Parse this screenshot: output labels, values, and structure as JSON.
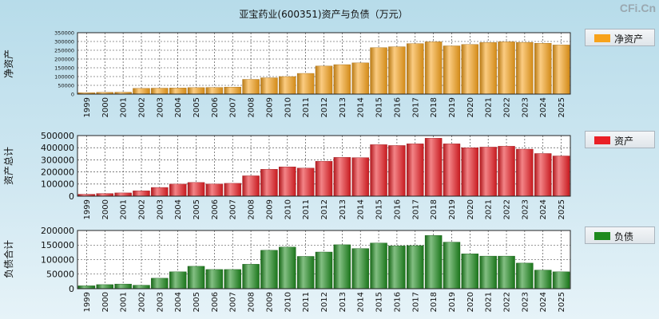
{
  "watermark": "CFi.Cn",
  "chart_data": {
    "title": "亚宝药业(600351)资产与负债（万元）",
    "categories": [
      "1999",
      "2000",
      "2001",
      "2002",
      "2003",
      "2004",
      "2005",
      "2006",
      "2007",
      "2008",
      "2009",
      "2010",
      "2011",
      "2012",
      "2013",
      "2014",
      "2015",
      "2016",
      "2017",
      "2018",
      "2019",
      "2020",
      "2021",
      "2022",
      "2023",
      "2024",
      "2025"
    ],
    "panels": [
      {
        "type": "bar",
        "name": "net-assets",
        "ylabel": "净资产",
        "legend": "净资产",
        "color": "#f7a21b",
        "ylim": [
          0,
          350000
        ],
        "yticks": [
          0,
          50000,
          100000,
          150000,
          200000,
          250000,
          300000,
          350000
        ],
        "values": [
          8000,
          10000,
          11000,
          33000,
          34000,
          35000,
          37000,
          38000,
          40000,
          84000,
          93000,
          100000,
          118000,
          160000,
          168000,
          178000,
          265000,
          270000,
          288000,
          298000,
          275000,
          283000,
          294000,
          298000,
          295000,
          290000,
          280000
        ]
      },
      {
        "type": "bar",
        "name": "total-assets",
        "ylabel": "资产总计",
        "legend": "资产",
        "color": "#ea1f25",
        "ylim": [
          0,
          500000
        ],
        "yticks": [
          0,
          100000,
          200000,
          300000,
          400000,
          500000
        ],
        "values": [
          16000,
          22000,
          27000,
          44000,
          72000,
          100000,
          113000,
          101000,
          106000,
          168000,
          222000,
          242000,
          232000,
          288000,
          320000,
          318000,
          425000,
          418000,
          432000,
          478000,
          432000,
          400000,
          405000,
          412000,
          388000,
          352000,
          332000
        ]
      },
      {
        "type": "bar",
        "name": "liabilities",
        "ylabel": "负债合计",
        "legend": "负债",
        "color": "#1e8a1e",
        "ylim": [
          0,
          200000
        ],
        "yticks": [
          0,
          50000,
          100000,
          150000,
          200000
        ],
        "values": [
          10000,
          14000,
          16000,
          12000,
          36000,
          58000,
          77000,
          66000,
          66000,
          84000,
          132000,
          143000,
          111000,
          126000,
          151000,
          138000,
          157000,
          147000,
          148000,
          183000,
          160000,
          120000,
          112000,
          112000,
          88000,
          64000,
          58000
        ]
      }
    ]
  }
}
